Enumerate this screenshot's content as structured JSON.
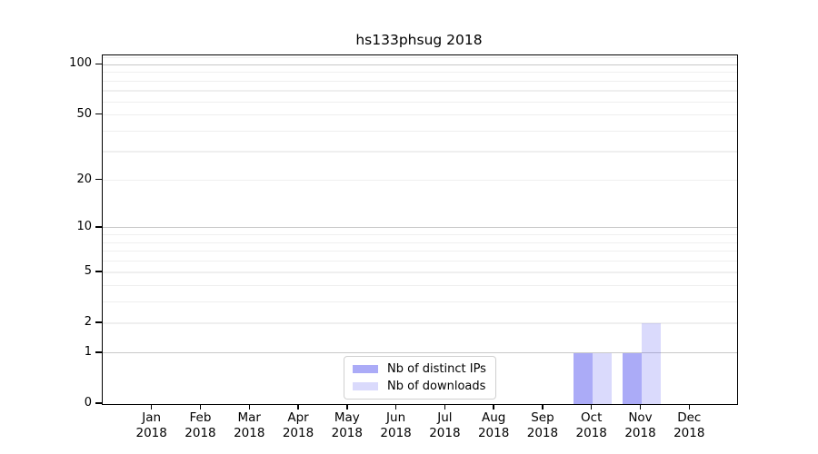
{
  "title": "hs133phsug 2018",
  "chart_data": {
    "type": "bar",
    "title": "hs133phsug 2018",
    "x_year": "2018",
    "categories": [
      "Jan",
      "Feb",
      "Mar",
      "Apr",
      "May",
      "Jun",
      "Jul",
      "Aug",
      "Sep",
      "Oct",
      "Nov",
      "Dec"
    ],
    "series": [
      {
        "name": "Nb of distinct IPs",
        "color": "rgba(68,68,238,0.45)",
        "values": [
          0,
          0,
          0,
          0,
          0,
          0,
          0,
          0,
          0,
          1,
          1,
          0
        ]
      },
      {
        "name": "Nb of downloads",
        "color": "rgba(68,68,238,0.20)",
        "values": [
          0,
          0,
          0,
          0,
          0,
          0,
          0,
          0,
          0,
          1,
          2,
          0
        ]
      }
    ],
    "y_axis": {
      "scale": "log1p",
      "tick_values": [
        0,
        1,
        2,
        5,
        10,
        20,
        50,
        100
      ],
      "tick_labels": [
        "0",
        "1",
        "2",
        "5",
        "10",
        "20",
        "50",
        "100"
      ],
      "major_grid_values": [
        1,
        10,
        100
      ],
      "minor_grid_values": [
        2,
        3,
        4,
        5,
        6,
        7,
        8,
        9,
        20,
        30,
        40,
        50,
        60,
        70,
        80,
        90,
        110
      ],
      "ymax": 113
    },
    "legend_entries": [
      "Nb of distinct IPs",
      "Nb of downloads"
    ],
    "colors": {
      "major_grid": "#c9c9c9",
      "minor_grid": "#efefef",
      "axis": "#000000",
      "bar_dark": "#aaaaf5",
      "bar_light": "#dadaf8"
    }
  }
}
